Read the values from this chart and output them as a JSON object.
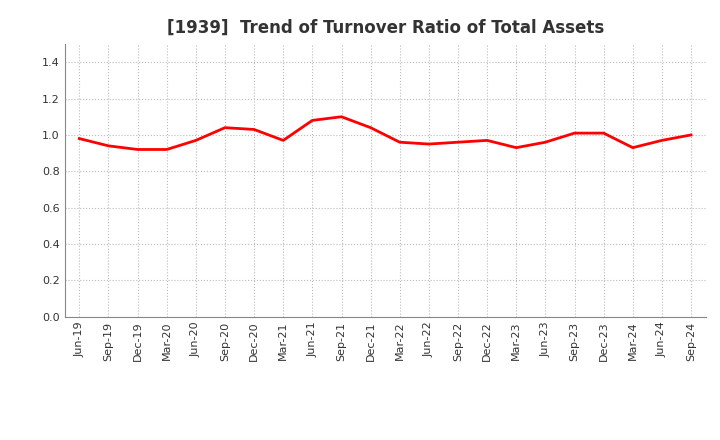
{
  "title": "[1939]  Trend of Turnover Ratio of Total Assets",
  "x_labels": [
    "Jun-19",
    "Sep-19",
    "Dec-19",
    "Mar-20",
    "Jun-20",
    "Sep-20",
    "Dec-20",
    "Mar-21",
    "Jun-21",
    "Sep-21",
    "Dec-21",
    "Mar-22",
    "Jun-22",
    "Sep-22",
    "Dec-22",
    "Mar-23",
    "Jun-23",
    "Sep-23",
    "Dec-23",
    "Mar-24",
    "Jun-24",
    "Sep-24"
  ],
  "y_values": [
    0.98,
    0.94,
    0.92,
    0.92,
    0.97,
    1.04,
    1.03,
    0.97,
    1.08,
    1.1,
    1.04,
    0.96,
    0.95,
    0.96,
    0.97,
    0.93,
    0.96,
    1.01,
    1.01,
    0.93,
    0.97,
    1.0
  ],
  "line_color": "#FF0000",
  "line_width": 2.0,
  "ylim": [
    0.0,
    1.5
  ],
  "yticks": [
    0.0,
    0.2,
    0.4,
    0.6,
    0.8,
    1.0,
    1.2,
    1.4
  ],
  "bg_color": "#FFFFFF",
  "plot_bg_color": "#FFFFFF",
  "grid_color": "#BBBBBB",
  "title_fontsize": 12,
  "title_color": "#333333",
  "tick_fontsize": 8
}
